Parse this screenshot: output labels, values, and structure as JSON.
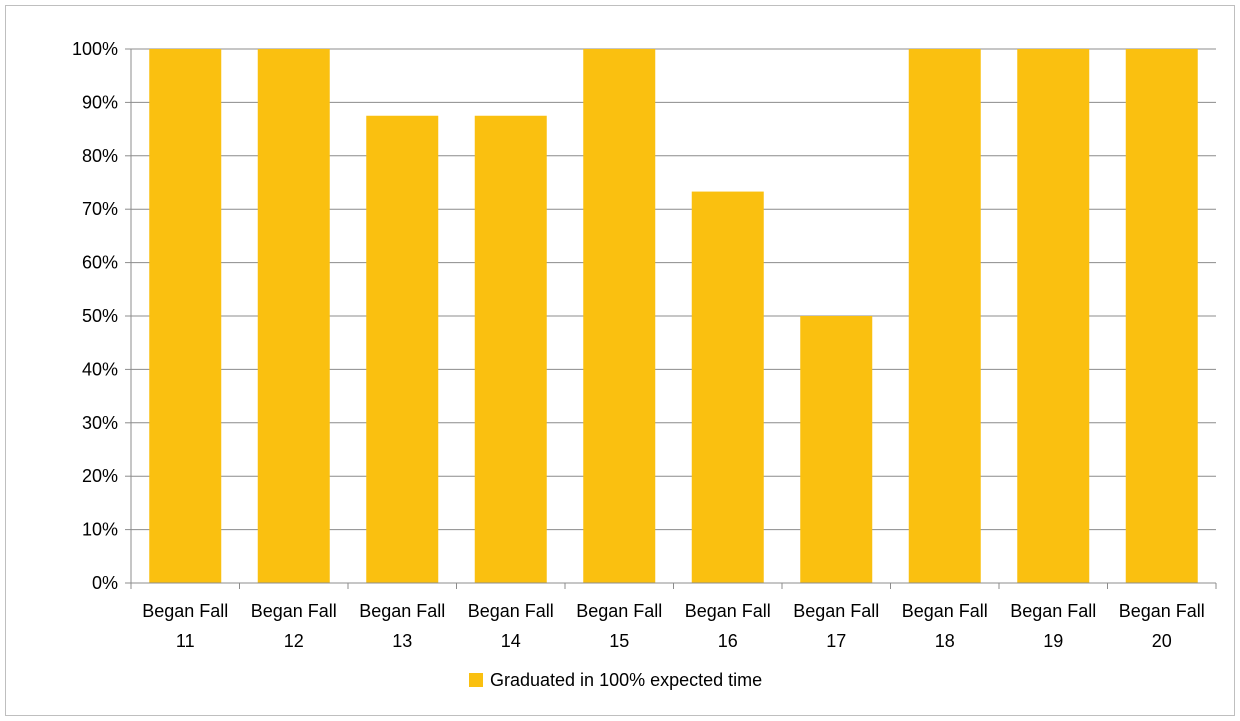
{
  "chart_data": {
    "type": "bar",
    "categories": [
      [
        "Began Fall",
        "11"
      ],
      [
        "Began Fall",
        "12"
      ],
      [
        "Began Fall",
        "13"
      ],
      [
        "Began Fall",
        "14"
      ],
      [
        "Began Fall",
        "15"
      ],
      [
        "Began Fall",
        "16"
      ],
      [
        "Began Fall",
        "17"
      ],
      [
        "Began Fall",
        "18"
      ],
      [
        "Began Fall",
        "19"
      ],
      [
        "Began Fall",
        "20"
      ]
    ],
    "series": [
      {
        "name": "Graduated in 100% expected time",
        "color": "#FAC010",
        "values": [
          100,
          100,
          87.5,
          87.5,
          100,
          73.3,
          50,
          100,
          100,
          100
        ]
      }
    ],
    "ylim": [
      0,
      100
    ],
    "yticks": [
      "0%",
      "10%",
      "20%",
      "30%",
      "40%",
      "50%",
      "60%",
      "70%",
      "80%",
      "90%",
      "100%"
    ],
    "grid": true,
    "legend_position": "bottom",
    "title": "",
    "xlabel": "",
    "ylabel": ""
  }
}
